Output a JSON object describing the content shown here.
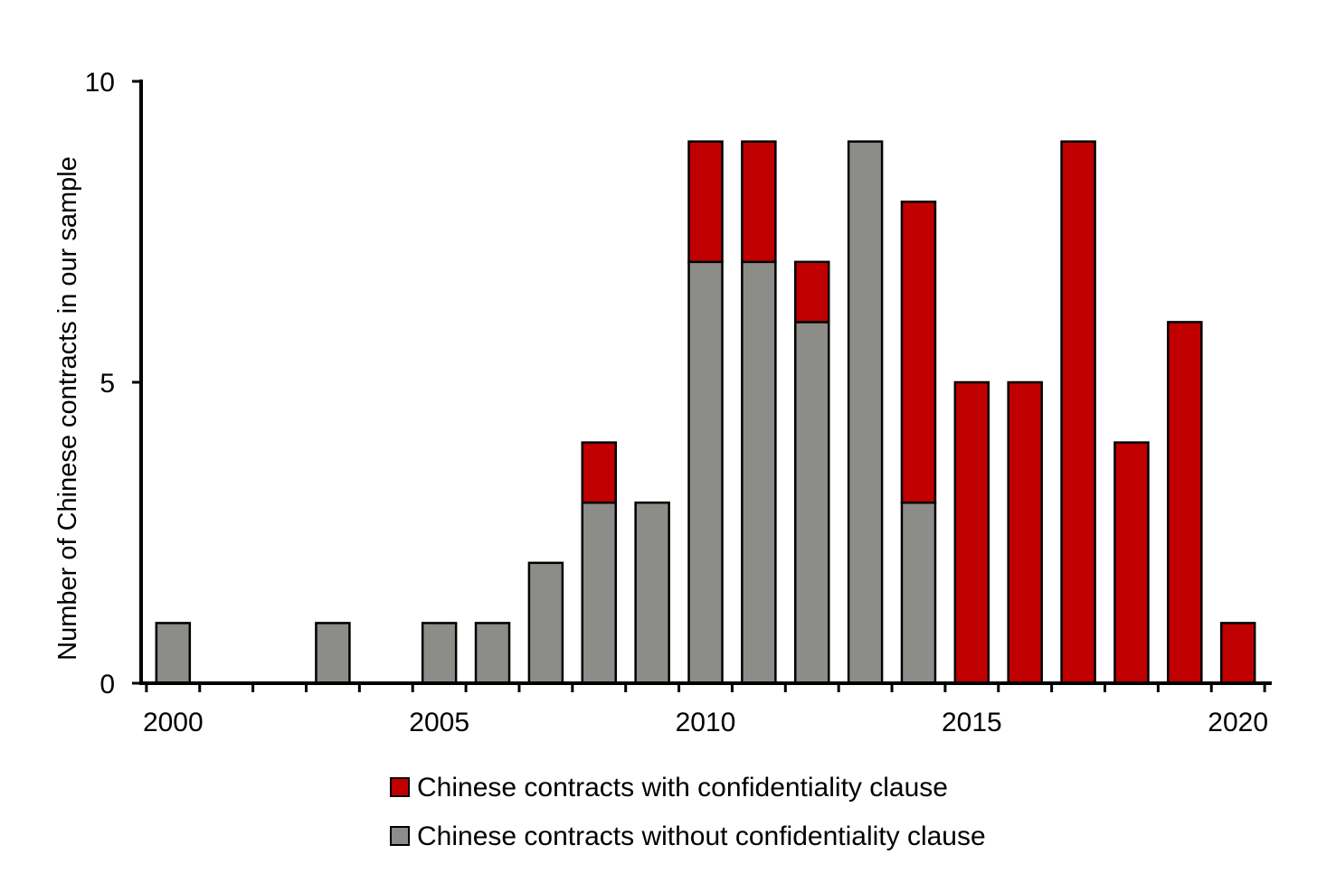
{
  "chart_data": {
    "type": "bar",
    "stacked": true,
    "title": "",
    "xlabel": "",
    "ylabel": "Number of Chinese contracts in our sample",
    "ylim": [
      0,
      10
    ],
    "yticks": [
      0,
      5,
      10
    ],
    "xlim": [
      1999.4,
      2020.6
    ],
    "xtick_labels": [
      2000,
      2005,
      2010,
      2015,
      2020
    ],
    "grid": false,
    "legend_placement": "bottom-center",
    "years": [
      2000,
      2001,
      2002,
      2003,
      2004,
      2005,
      2006,
      2007,
      2008,
      2009,
      2010,
      2011,
      2012,
      2013,
      2014,
      2015,
      2016,
      2017,
      2018,
      2019,
      2020
    ],
    "series": [
      {
        "key": "without",
        "name": "Chinese contracts without confidentiality clause",
        "color": "#8c8c89",
        "values": [
          1,
          0,
          0,
          1,
          0,
          1,
          1,
          2,
          3,
          3,
          7,
          7,
          6,
          9,
          3,
          0,
          0,
          0,
          0,
          0,
          0
        ]
      },
      {
        "key": "with",
        "name": "Chinese contracts with confidentiality clause",
        "color": "#c00000",
        "values": [
          0,
          0,
          0,
          0,
          0,
          0,
          0,
          0,
          1,
          0,
          2,
          2,
          1,
          0,
          5,
          5,
          5,
          9,
          4,
          6,
          1
        ]
      }
    ],
    "legend_order": [
      "with",
      "without"
    ]
  }
}
